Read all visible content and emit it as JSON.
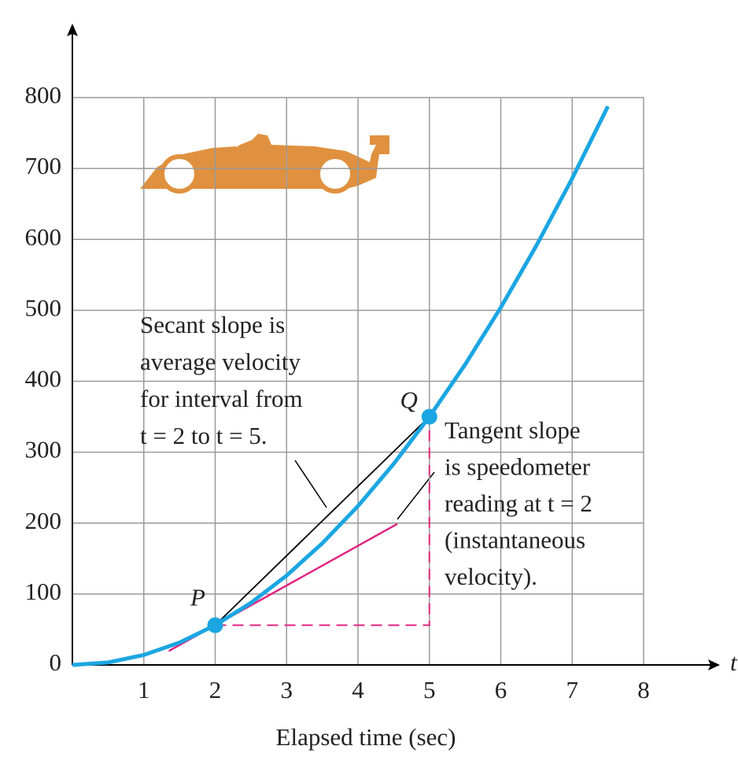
{
  "chart_data": {
    "type": "line",
    "x_label": "Elapsed time (sec)",
    "x_axis_symbol": "t",
    "x": [
      0,
      0.5,
      1,
      1.5,
      2,
      2.5,
      3,
      3.5,
      4,
      4.5,
      5,
      5.5,
      6,
      6.5,
      7,
      7.5
    ],
    "series": [
      {
        "color": "#1ba6e2",
        "values": [
          0,
          3.5,
          14,
          31.5,
          56,
          87.5,
          126,
          171.5,
          224,
          283.5,
          350,
          423.5,
          504,
          591.5,
          686,
          787.5
        ]
      }
    ],
    "points": [
      {
        "label": "P",
        "x": 2,
        "y": 56
      },
      {
        "label": "Q",
        "x": 5,
        "y": 350
      }
    ],
    "point_color": "#1ba6e2",
    "secant_color": "#000000",
    "tangent": {
      "x": [
        1.35,
        4.55
      ],
      "values": [
        19.6,
        198.8
      ],
      "color": "#e0237f"
    },
    "secant_text": [
      "Secant slope is",
      "average velocity",
      "for interval from",
      "t = 2 to t = 5."
    ],
    "tangent_text": [
      "Tangent slope",
      "is speedometer",
      "reading at t = 2",
      "(instantaneous",
      "velocity)."
    ],
    "xlim": [
      0,
      8
    ],
    "ylim": [
      0,
      800
    ],
    "xticks": [
      1,
      2,
      3,
      4,
      5,
      6,
      7,
      8
    ],
    "yticks": [
      0,
      100,
      200,
      300,
      400,
      500,
      600,
      700,
      800
    ],
    "grid": true
  }
}
